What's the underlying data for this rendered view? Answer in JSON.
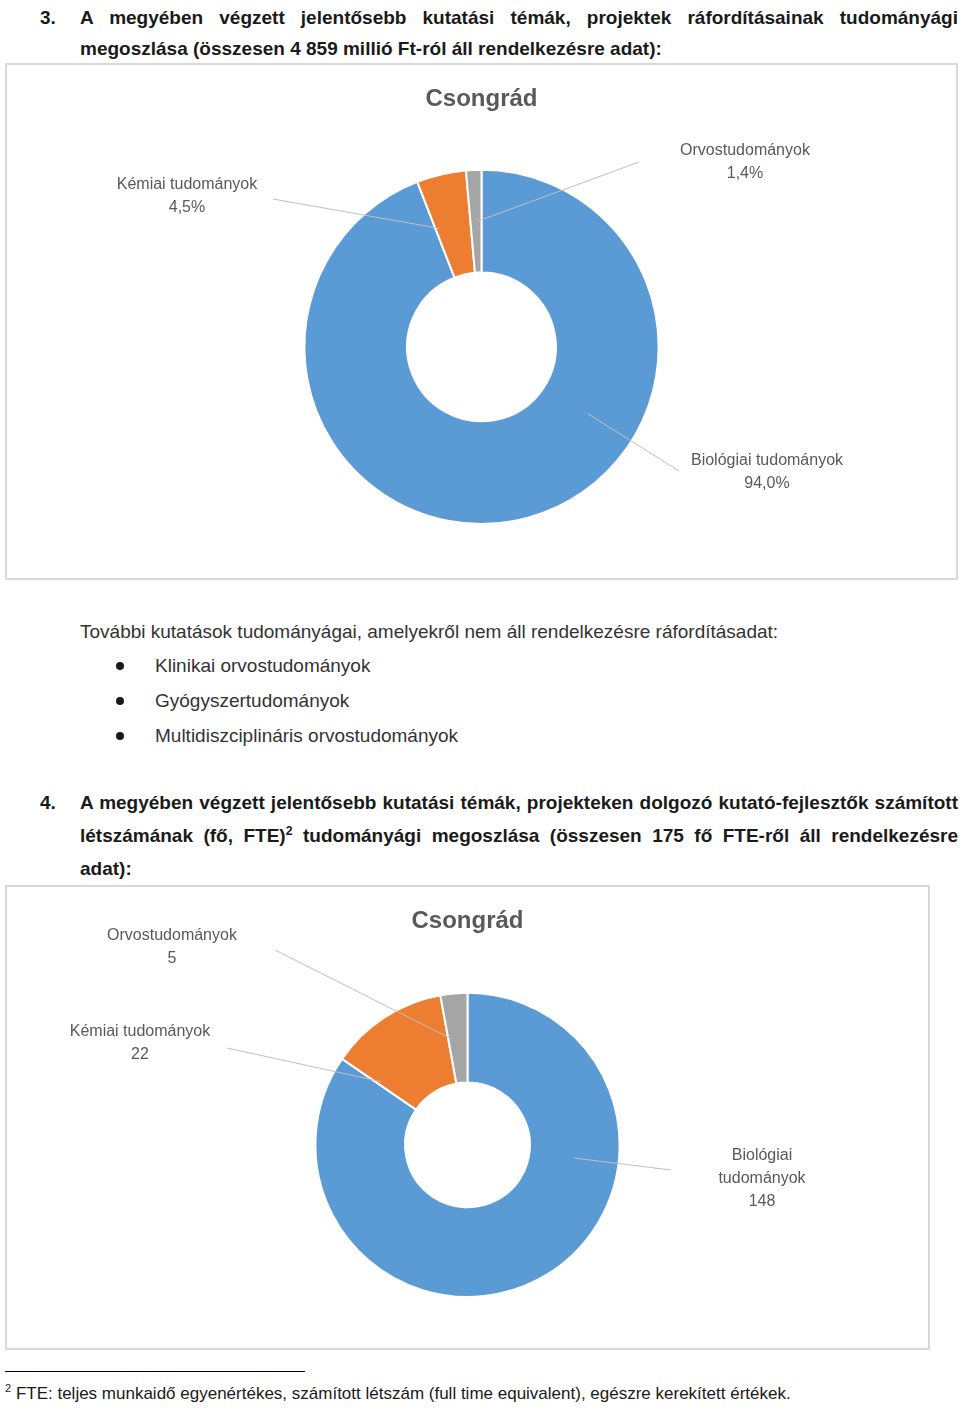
{
  "heading_3": {
    "number": "3.",
    "text": "A megyében végzett jelentősebb kutatási témák, projektek ráfordításainak tudományági megoszlása (összesen 4 859 millió Ft-ról áll rendelkezésre adat):"
  },
  "chart_data": [
    {
      "type": "doughnut",
      "title": "Csongrád",
      "categories": [
        "Biológiai tudományok",
        "Kémiai tudományok",
        "Orvostudományok"
      ],
      "values": [
        94.0,
        4.5,
        1.4
      ],
      "value_labels": [
        "94,0%",
        "4,5%",
        "1,4%"
      ],
      "colors": [
        "#5b9bd5",
        "#ed7d31",
        "#a5a5a5"
      ],
      "data_labels": true
    },
    {
      "type": "doughnut",
      "title": "Csongrád",
      "categories": [
        "Biológiai tudományok",
        "Kémiai tudományok",
        "Orvostudományok"
      ],
      "values": [
        148,
        22,
        5
      ],
      "colors": [
        "#5b9bd5",
        "#ed7d31",
        "#a5a5a5"
      ],
      "data_labels": true
    }
  ],
  "note": {
    "text": "További kutatások tudományágai, amelyekről nem áll rendelkezésre ráfordításadat:",
    "items": [
      "Klinikai orvostudományok",
      "Gyógyszertudományok",
      "Multidiszciplináris orvostudományok"
    ]
  },
  "heading_4": {
    "number": "4.",
    "text_before": "A megyében végzett jelentősebb kutatási témák, projekteken dolgozó kutató-fejlesztők számított létszámának (fő, FTE)",
    "footnote_mark": "2",
    "text_after": "tudományági megoszlása (összesen 175 fő FTE-ről áll rendelkezésre adat):"
  },
  "footnote": {
    "mark": "2",
    "text": "FTE: teljes munkaidő egyenértékes, számított létszám (full time equivalent), egészre kerekített értékek."
  }
}
